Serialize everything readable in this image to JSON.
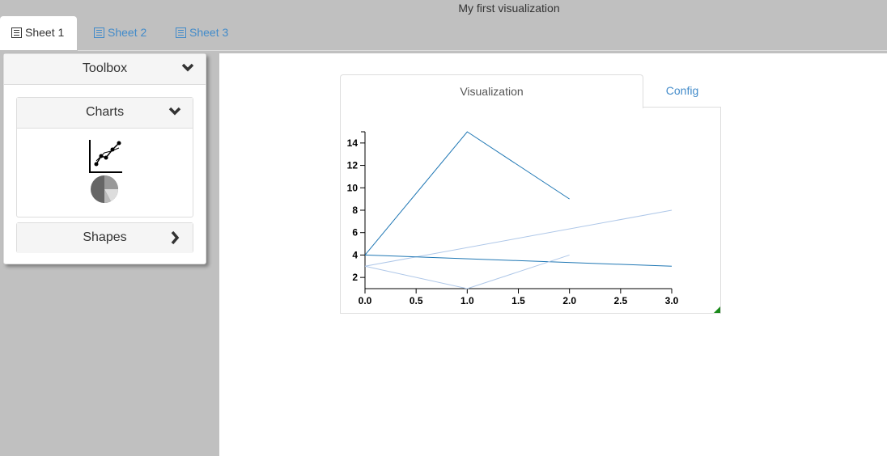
{
  "app": {
    "title": "My first visualization"
  },
  "sheets": [
    {
      "label": "Sheet 1",
      "icon": "sheet-icon",
      "active": true
    },
    {
      "label": "Sheet 2",
      "icon": "sheet-icon",
      "active": false
    },
    {
      "label": "Sheet 3",
      "icon": "sheet-icon",
      "active": false
    }
  ],
  "toolbox": {
    "title": "Toolbox",
    "panels": [
      {
        "label": "Charts",
        "state": "expanded",
        "items": [
          "line-chart-icon",
          "pie-chart-icon"
        ]
      },
      {
        "label": "Shapes",
        "state": "collapsed"
      }
    ]
  },
  "visualization": {
    "tabs": [
      {
        "label": "Visualization",
        "active": true
      },
      {
        "label": "Config",
        "active": false
      }
    ]
  },
  "colors": {
    "dark_series": "#1f77b4",
    "light_series": "#aec7e8",
    "accent": "#428bca",
    "handle": "#1a8a1a"
  },
  "chart_data": {
    "type": "line",
    "xlim": [
      0,
      3
    ],
    "ylim": [
      1,
      15
    ],
    "xticks": [
      "0.0",
      "0.5",
      "1.0",
      "1.5",
      "2.0",
      "2.5",
      "3.0"
    ],
    "yticks": [
      "2",
      "4",
      "6",
      "8",
      "10",
      "12",
      "14"
    ],
    "grid": false,
    "series": [
      {
        "color": "#1f77b4",
        "points": [
          [
            0,
            4
          ],
          [
            1,
            15
          ],
          [
            2,
            9
          ]
        ]
      },
      {
        "color": "#aec7e8",
        "points": [
          [
            0,
            3
          ],
          [
            3,
            8
          ]
        ]
      },
      {
        "color": "#1f77b4",
        "points": [
          [
            0,
            4
          ],
          [
            3,
            3
          ]
        ]
      },
      {
        "color": "#aec7e8",
        "points": [
          [
            0,
            3
          ],
          [
            1,
            1
          ],
          [
            2,
            4
          ]
        ]
      }
    ]
  }
}
